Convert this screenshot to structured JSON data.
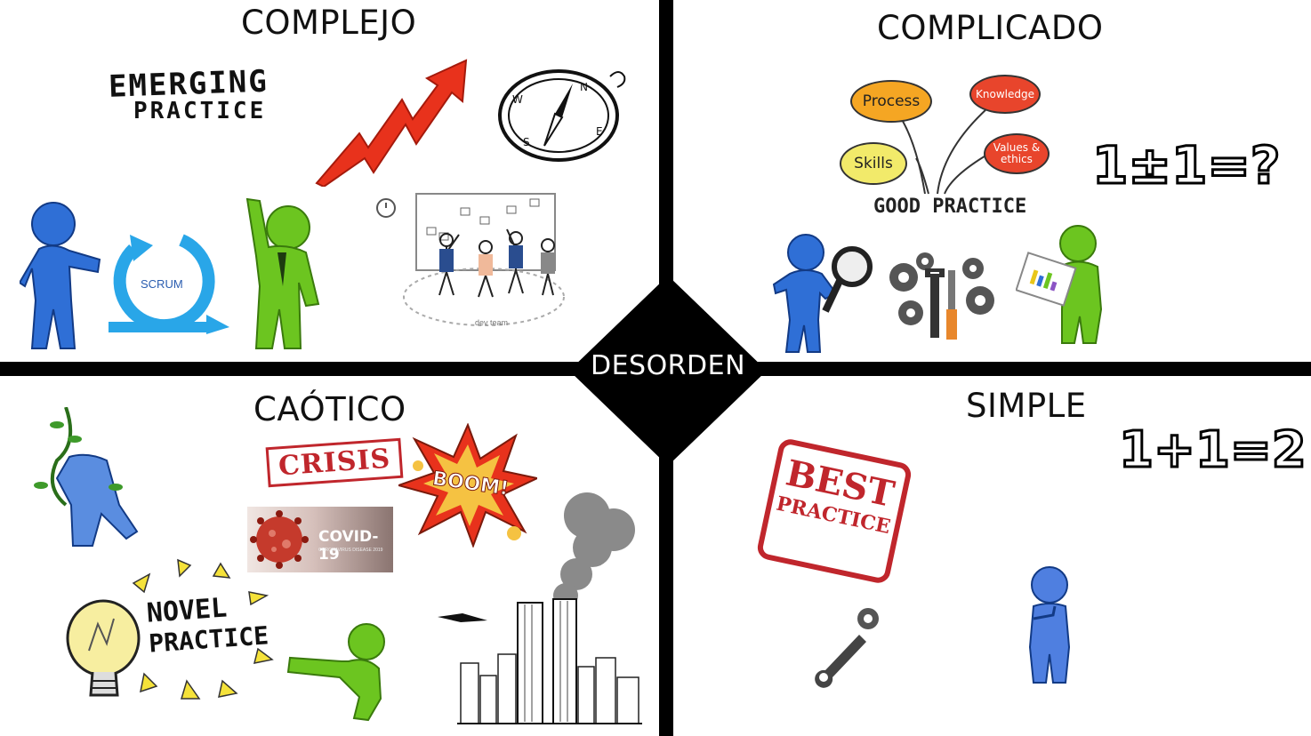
{
  "quadrants": {
    "complejo": {
      "title": "COMPLEJO",
      "emerging_line1": "EMERGING",
      "emerging_line2": "PRACTICE",
      "scrum_label": "SCRUM",
      "team_caption": "dev team"
    },
    "complicado": {
      "title": "COMPLICADO",
      "bubbles": [
        "Process",
        "Knowledge",
        "Skills",
        "Values & ethics"
      ],
      "good_practice": "GOOD PRACTICE",
      "equation": "1±1=?"
    },
    "caotico": {
      "title": "CAÓTICO",
      "crisis": "CRISIS",
      "boom": "BOOM!",
      "covid": "COVID-19",
      "covid_sub": "CORONAVIRUS DISEASE 2019",
      "novel_line1": "NOVEL",
      "novel_line2": "PRACTICE"
    },
    "simple": {
      "title": "SIMPLE",
      "equation": "1+1=2",
      "best_line1": "BEST",
      "best_line2": "PRACTICE"
    }
  },
  "center": {
    "label": "DESORDEN"
  },
  "colors": {
    "blue_figure": "#2f6fd6",
    "green_figure": "#6cc520",
    "arrow_red": "#e8321c",
    "scrum_blue": "#29a6e8",
    "stamp_red": "#c0262c",
    "bubble_orange": "#f5a623",
    "bubble_red": "#e8452c",
    "bubble_yellow": "#f2ea6a"
  }
}
